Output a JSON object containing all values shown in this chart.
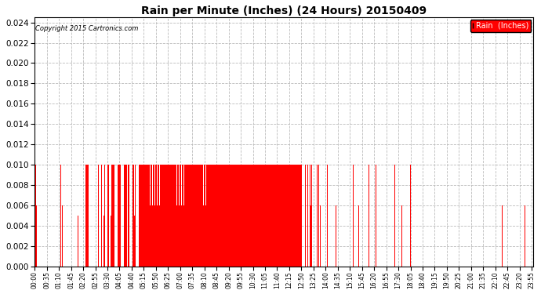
{
  "title": "Rain per Minute (Inches) (24 Hours) 20150409",
  "copyright_text": "Copyright 2015 Cartronics.com",
  "legend_label": "Rain  (Inches)",
  "bar_color": "#ff0000",
  "background_color": "#ffffff",
  "grid_color": "#bbbbbb",
  "ylim_max": 0.0245,
  "yticks": [
    0.0,
    0.002,
    0.004,
    0.006,
    0.008,
    0.01,
    0.012,
    0.014,
    0.016,
    0.018,
    0.02,
    0.022,
    0.024
  ],
  "total_minutes": 1440,
  "xtick_step": 35,
  "figwidth": 6.9,
  "figheight": 3.75,
  "dpi": 100
}
